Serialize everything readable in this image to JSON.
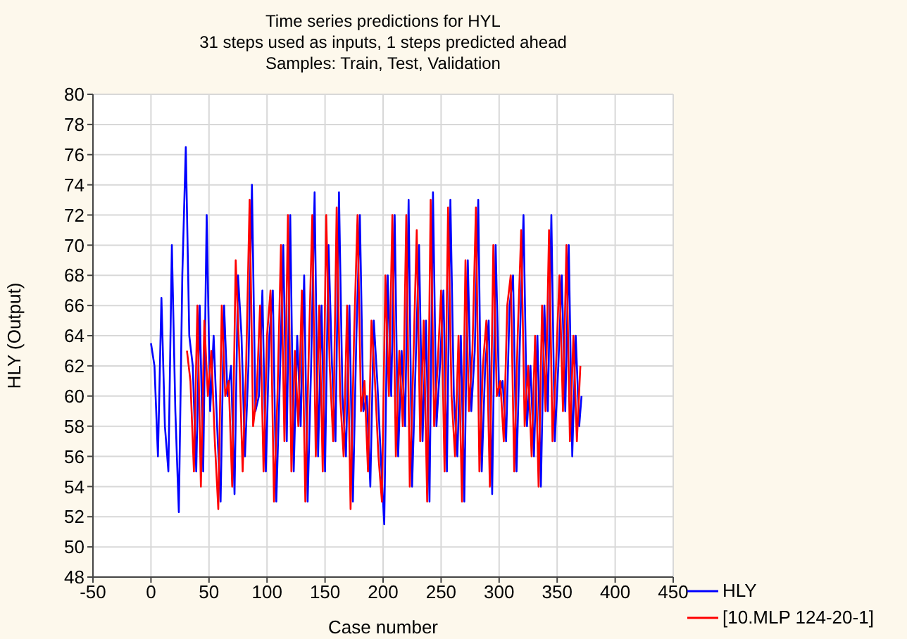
{
  "chart_data": {
    "type": "line",
    "title": "Time series predictions for HYL",
    "subtitle": "31 steps used as inputs, 1 steps predicted ahead\nSamples: Train, Test, Validation",
    "xlabel": "Case number",
    "ylabel": "HLY (Output)",
    "xlim": [
      -50,
      450
    ],
    "xticks": [
      -50,
      0,
      50,
      100,
      150,
      200,
      250,
      300,
      350,
      400,
      450
    ],
    "ylim": [
      48,
      80
    ],
    "yticks": [
      48,
      50,
      52,
      54,
      56,
      58,
      60,
      62,
      64,
      66,
      68,
      70,
      72,
      74,
      76,
      78,
      80
    ],
    "grid": true,
    "legend": "bottom right",
    "marker": "none",
    "line_style": "solid",
    "series": [
      {
        "name": "HLY",
        "color": "#0000ff",
        "x": [
          0,
          3,
          6,
          9,
          12,
          15,
          18,
          21,
          24,
          27,
          30,
          33,
          36,
          39,
          42,
          45,
          48,
          51,
          54,
          57,
          60,
          63,
          66,
          69,
          72,
          75,
          78,
          81,
          84,
          87,
          90,
          93,
          96,
          99,
          102,
          105,
          108,
          111,
          114,
          117,
          120,
          123,
          126,
          129,
          132,
          135,
          138,
          141,
          144,
          147,
          150,
          153,
          156,
          159,
          162,
          165,
          168,
          171,
          174,
          177,
          180,
          183,
          186,
          189,
          192,
          195,
          198,
          201,
          204,
          207,
          210,
          213,
          216,
          219,
          222,
          225,
          228,
          231,
          234,
          237,
          240,
          243,
          246,
          249,
          252,
          255,
          258,
          261,
          264,
          267,
          270,
          273,
          276,
          279,
          282,
          285,
          288,
          291,
          294,
          297,
          300,
          303,
          306,
          309,
          312,
          315,
          318,
          321,
          324,
          327,
          330,
          333,
          336,
          339,
          342,
          345,
          348,
          351,
          354,
          357,
          360,
          363,
          366,
          369,
          371
        ],
        "values": [
          63.5,
          62,
          56,
          66.5,
          58,
          55,
          70,
          59,
          52.3,
          68,
          76.5,
          64,
          62,
          55,
          66,
          55,
          72,
          59,
          64,
          58,
          53,
          66,
          60,
          62,
          53.5,
          68,
          64,
          56,
          62,
          74,
          59,
          60,
          67,
          55,
          64,
          67,
          53,
          61,
          70,
          57,
          72,
          55,
          64,
          58,
          68,
          53,
          62,
          73.5,
          56,
          66,
          55,
          70,
          62,
          57,
          73.5,
          60,
          56,
          66,
          53,
          64,
          72,
          59,
          60,
          54,
          65,
          61,
          56,
          51.5,
          68,
          60,
          72,
          56,
          63,
          58,
          73,
          54,
          62,
          70,
          57,
          65,
          53,
          73.5,
          58,
          62,
          67,
          55,
          73,
          60,
          56,
          64,
          53,
          69,
          59,
          63,
          73,
          55,
          62,
          65,
          53.5,
          70,
          60,
          61,
          57,
          66,
          68,
          55,
          64,
          72,
          58,
          62,
          56,
          64,
          54,
          66,
          59,
          72,
          57,
          62,
          68,
          59,
          70,
          56,
          64,
          58,
          60
        ]
      },
      {
        "name": "[10.MLP 124-20-1]",
        "color": "#ff0000",
        "x": [
          31,
          34,
          37,
          40,
          43,
          46,
          49,
          52,
          55,
          58,
          61,
          64,
          67,
          70,
          73,
          76,
          79,
          82,
          85,
          88,
          91,
          94,
          97,
          100,
          103,
          106,
          109,
          112,
          115,
          118,
          121,
          124,
          127,
          130,
          133,
          136,
          139,
          142,
          145,
          148,
          151,
          154,
          157,
          160,
          163,
          166,
          169,
          172,
          175,
          178,
          181,
          184,
          187,
          190,
          193,
          196,
          199,
          202,
          205,
          208,
          211,
          214,
          217,
          220,
          223,
          226,
          229,
          232,
          235,
          238,
          241,
          244,
          247,
          250,
          253,
          256,
          259,
          262,
          265,
          268,
          271,
          274,
          277,
          280,
          283,
          286,
          289,
          292,
          295,
          298,
          301,
          304,
          307,
          310,
          313,
          316,
          319,
          322,
          325,
          328,
          331,
          334,
          337,
          340,
          343,
          346,
          349,
          352,
          355,
          358,
          361,
          364,
          367,
          370
        ],
        "values": [
          63,
          61,
          55,
          66,
          54,
          65,
          60,
          63,
          57,
          52.5,
          66,
          60,
          61,
          54,
          69,
          63,
          55,
          62,
          73,
          58,
          60,
          66,
          55,
          64,
          67,
          53,
          60,
          70,
          57,
          72,
          55,
          63,
          58,
          67,
          53,
          63,
          72,
          56,
          66,
          55,
          72,
          62,
          57,
          72.5,
          60,
          56,
          66,
          52.5,
          64,
          72,
          59,
          61,
          55,
          65,
          61,
          56,
          53,
          68,
          60,
          72,
          56,
          63,
          58,
          72,
          54,
          62,
          71,
          57,
          65,
          53,
          73,
          58,
          62,
          67,
          55,
          72.5,
          60,
          56,
          64,
          53,
          69,
          59,
          63,
          72.5,
          55,
          62,
          65,
          54,
          70,
          60,
          61,
          57,
          66,
          68,
          55,
          64,
          71,
          58,
          62,
          56,
          64,
          54,
          66,
          59,
          71,
          57,
          62,
          68,
          59,
          70,
          57,
          64,
          57,
          62
        ]
      }
    ]
  }
}
